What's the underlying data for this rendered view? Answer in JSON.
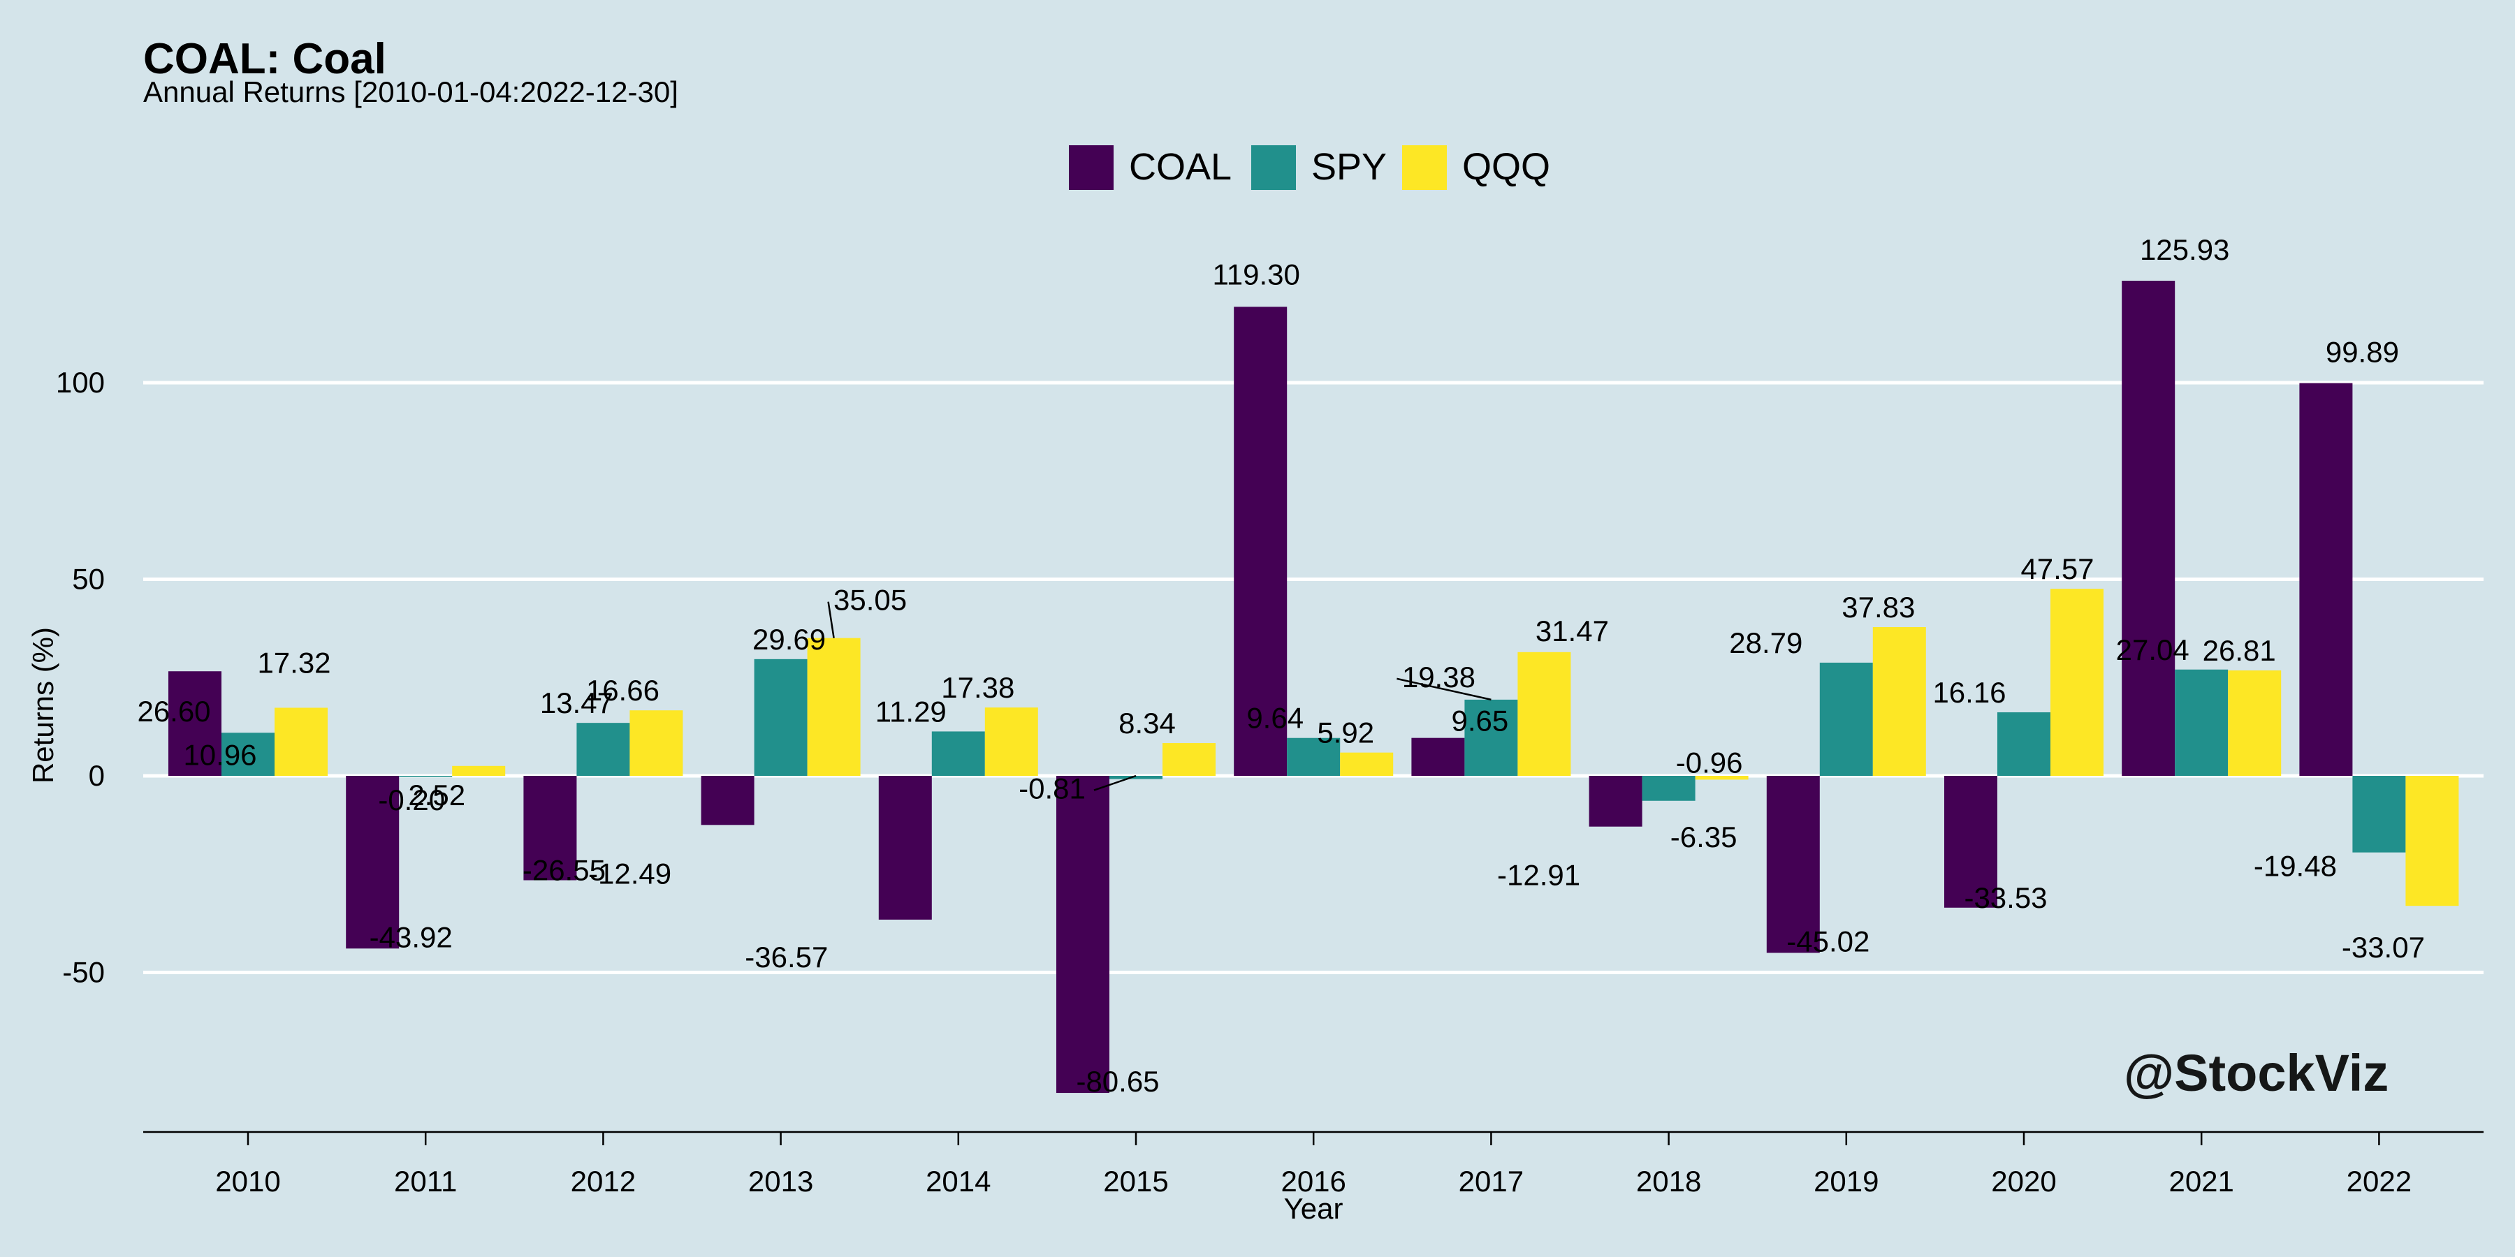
{
  "colors": {
    "background": "#d4e4ea",
    "grid": "#ffffff",
    "COAL": "#440154",
    "SPY": "#21908c",
    "QQQ": "#fde725",
    "watermark": "#ffffff"
  },
  "chart_data": {
    "type": "bar",
    "title": "COAL: Coal",
    "subtitle": "Annual Returns [2010-01-04:2022-12-30]",
    "xlabel": "Year",
    "ylabel": "Returns (%)",
    "ylim": [
      -90,
      140
    ],
    "yticks": [
      -50,
      0,
      50,
      100
    ],
    "ytick_labels": [
      "-50",
      "0",
      "50",
      "100"
    ],
    "grid": true,
    "legend_position": "top",
    "categories": [
      "2010",
      "2011",
      "2012",
      "2013",
      "2014",
      "2015",
      "2016",
      "2017",
      "2018",
      "2019",
      "2020",
      "2021",
      "2022"
    ],
    "series": [
      {
        "name": "COAL",
        "values": [
          26.6,
          -43.92,
          -26.55,
          -12.49,
          -36.57,
          -80.65,
          119.3,
          9.65,
          -12.91,
          -45.02,
          -33.53,
          125.93,
          99.89
        ],
        "labels": [
          "26.60",
          "-43.92",
          "-26.55",
          "-12.49",
          "-36.57",
          "-80.65",
          "119.30",
          "9.65",
          "-12.91",
          "-45.02",
          "-33.53",
          "125.93",
          "99.89"
        ]
      },
      {
        "name": "SPY",
        "values": [
          10.96,
          -0.2,
          13.47,
          29.69,
          11.29,
          -0.81,
          9.64,
          19.38,
          -6.35,
          28.79,
          16.16,
          27.04,
          -19.48
        ],
        "labels": [
          "10.96",
          "-0.20",
          "13.47",
          "29.69",
          "11.29",
          "-0.81",
          "9.64",
          "19.38",
          "-6.35",
          "28.79",
          "16.16",
          "27.04",
          "-19.48"
        ]
      },
      {
        "name": "QQQ",
        "values": [
          17.32,
          2.52,
          16.66,
          35.05,
          17.38,
          8.34,
          5.92,
          31.47,
          -0.96,
          37.83,
          47.57,
          26.81,
          -33.07
        ],
        "labels": [
          "17.32",
          "2.52",
          "16.66",
          "35.05",
          "17.38",
          "8.34",
          "5.92",
          "31.47",
          "-0.96",
          "37.83",
          "47.57",
          "26.81",
          "-33.07"
        ]
      }
    ]
  },
  "watermark": "@StockViz"
}
